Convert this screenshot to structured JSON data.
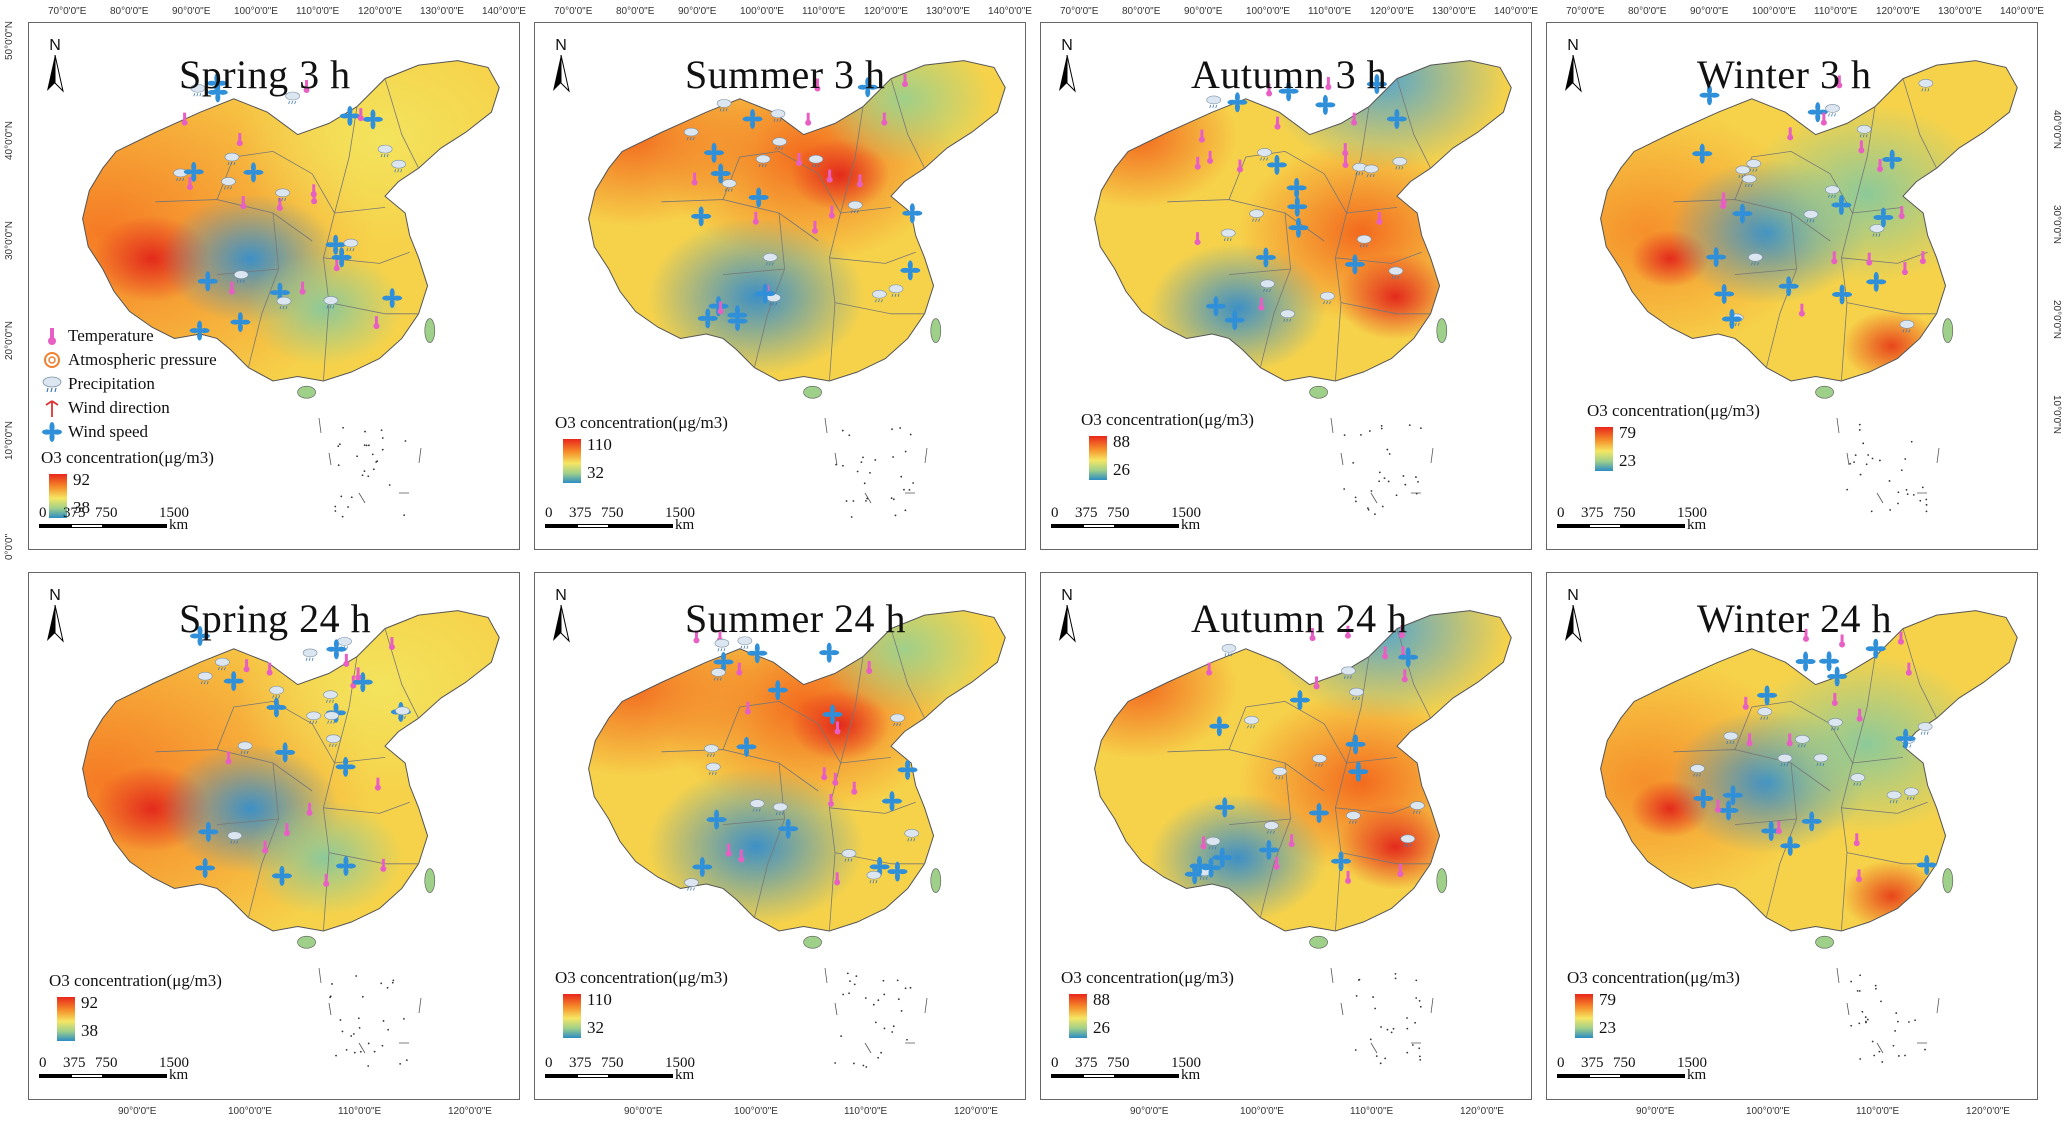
{
  "panels": [
    {
      "title": "Spring 3 h",
      "legend": {
        "title": "O3 concentration(μg/m3)",
        "max": "92",
        "min": "38"
      },
      "palette": "spring"
    },
    {
      "title": "Summer 3 h",
      "legend": {
        "title": "O3 concentration(μg/m3)",
        "max": "110",
        "min": "32"
      },
      "palette": "summer"
    },
    {
      "title": "Autumn 3 h",
      "legend": {
        "title": "O3 concentration(μg/m3)",
        "max": "88",
        "min": "26"
      },
      "palette": "autumn"
    },
    {
      "title": "Winter 3 h",
      "legend": {
        "title": "O3 concentration(μg/m3)",
        "max": "79",
        "min": "23"
      },
      "palette": "winter"
    },
    {
      "title": "Spring 24 h",
      "legend": {
        "title": "O3 concentration(μg/m3)",
        "max": "92",
        "min": "38"
      },
      "palette": "spring"
    },
    {
      "title": "Summer 24 h",
      "legend": {
        "title": "O3 concentration(μg/m3)",
        "max": "110",
        "min": "32"
      },
      "palette": "summer"
    },
    {
      "title": "Autumn 24 h",
      "legend": {
        "title": "O3 concentration(μg/m3)",
        "max": "88",
        "min": "26"
      },
      "palette": "autumn"
    },
    {
      "title": "Winter 24 h",
      "legend": {
        "title": "O3 concentration(μg/m3)",
        "max": "79",
        "min": "23"
      },
      "palette": "winter"
    }
  ],
  "north_label": "N",
  "scalebar": {
    "labels": [
      "0",
      "375",
      "750",
      "1500"
    ],
    "unit": "km"
  },
  "met_legend": [
    {
      "icon": "thermometer-icon",
      "label": "Temperature"
    },
    {
      "icon": "pressure-icon",
      "label": "Atmospheric pressure"
    },
    {
      "icon": "precipitation-icon",
      "label": "Precipitation"
    },
    {
      "icon": "wind-direction-icon",
      "label": "Wind direction"
    },
    {
      "icon": "wind-speed-icon",
      "label": "Wind speed"
    }
  ],
  "graticule": {
    "top": [
      "70°0'0\"E",
      "80°0'0\"E",
      "90°0'0\"E",
      "100°0'0\"E",
      "110°0'0\"E",
      "120°0'0\"E",
      "130°0'0\"E",
      "140°0'0\"E"
    ],
    "bottom": [
      "90°0'0\"E",
      "100°0'0\"E",
      "110°0'0\"E",
      "120°0'0\"E"
    ],
    "left": [
      "50°0'0\"N",
      "40°0'0\"N",
      "30°0'0\"N",
      "20°0'0\"N",
      "10°0'0\"N",
      "0°0'0\""
    ],
    "right": [
      "40°0'0\"N",
      "30°0'0\"N",
      "20°0'0\"N",
      "10°0'0\"N"
    ]
  },
  "colors": {
    "high": "#e8261b",
    "mid_high": "#f58f2a",
    "mid": "#f5e663",
    "mid_low": "#9fd08a",
    "low": "#2b8cc4"
  }
}
